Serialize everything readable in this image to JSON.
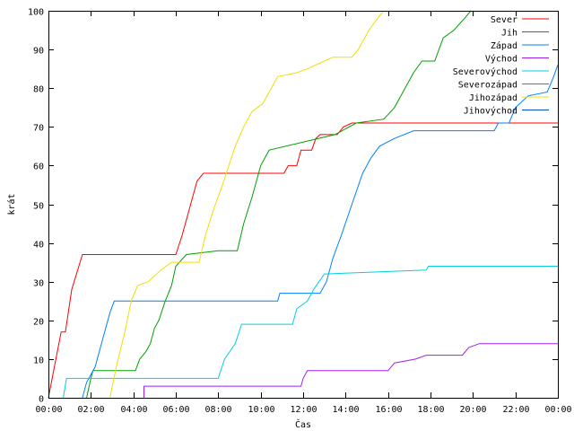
{
  "chart_data": {
    "type": "line",
    "xlabel": "Čas",
    "ylabel": "krát",
    "xlim": [
      0,
      24
    ],
    "ylim": [
      0,
      100
    ],
    "grid": false,
    "legend_position": "top-right",
    "x_ticks": [
      {
        "value": 0,
        "label": "00:00"
      },
      {
        "value": 2,
        "label": "02:00"
      },
      {
        "value": 4,
        "label": "04:00"
      },
      {
        "value": 6,
        "label": "06:00"
      },
      {
        "value": 8,
        "label": "08:00"
      },
      {
        "value": 10,
        "label": "10:00"
      },
      {
        "value": 12,
        "label": "12:00"
      },
      {
        "value": 14,
        "label": "14:00"
      },
      {
        "value": 16,
        "label": "16:00"
      },
      {
        "value": 18,
        "label": "18:00"
      },
      {
        "value": 20,
        "label": "20:00"
      },
      {
        "value": 22,
        "label": "22:00"
      },
      {
        "value": 24,
        "label": "00:00"
      }
    ],
    "y_ticks": [
      {
        "value": 0,
        "label": "0"
      },
      {
        "value": 10,
        "label": "10"
      },
      {
        "value": 20,
        "label": "20"
      },
      {
        "value": 30,
        "label": "30"
      },
      {
        "value": 40,
        "label": "40"
      },
      {
        "value": 50,
        "label": "50"
      },
      {
        "value": 60,
        "label": "60"
      },
      {
        "value": 70,
        "label": "70"
      },
      {
        "value": 80,
        "label": "80"
      },
      {
        "value": 90,
        "label": "90"
      },
      {
        "value": 100,
        "label": "100"
      }
    ],
    "series": [
      {
        "name": "Sever",
        "color": "#ff0000",
        "points": [
          [
            0.0,
            0
          ],
          [
            0.35,
            10
          ],
          [
            0.6,
            17
          ],
          [
            0.8,
            17
          ],
          [
            1.1,
            28
          ],
          [
            1.6,
            37
          ],
          [
            6.0,
            37
          ],
          [
            6.3,
            42
          ],
          [
            6.7,
            50
          ],
          [
            7.0,
            56
          ],
          [
            7.3,
            58
          ],
          [
            11.1,
            58
          ],
          [
            11.3,
            60
          ],
          [
            11.7,
            60
          ],
          [
            11.9,
            64
          ],
          [
            12.4,
            64
          ],
          [
            12.6,
            67
          ],
          [
            12.8,
            68
          ],
          [
            13.6,
            68
          ],
          [
            13.9,
            70
          ],
          [
            14.3,
            71
          ],
          [
            24.0,
            71
          ]
        ]
      },
      {
        "name": "Jih",
        "color": "#00a000",
        "points": [
          [
            1.8,
            0
          ],
          [
            2.0,
            5
          ],
          [
            2.1,
            7
          ],
          [
            4.1,
            7
          ],
          [
            4.3,
            10
          ],
          [
            4.6,
            12
          ],
          [
            4.8,
            14
          ],
          [
            5.0,
            18
          ],
          [
            5.2,
            20
          ],
          [
            5.5,
            25
          ],
          [
            5.8,
            29
          ],
          [
            6.0,
            34
          ],
          [
            6.5,
            37
          ],
          [
            8.0,
            38
          ],
          [
            8.9,
            38
          ],
          [
            9.2,
            45
          ],
          [
            9.6,
            52
          ],
          [
            10.0,
            60
          ],
          [
            10.4,
            64
          ],
          [
            13.5,
            68
          ],
          [
            14.5,
            71
          ],
          [
            15.8,
            72
          ],
          [
            16.3,
            75
          ],
          [
            16.8,
            80
          ],
          [
            17.2,
            84
          ],
          [
            17.6,
            87
          ],
          [
            18.2,
            87
          ],
          [
            18.6,
            93
          ],
          [
            19.1,
            95
          ],
          [
            19.6,
            98
          ],
          [
            19.9,
            100
          ]
        ]
      },
      {
        "name": "Západ",
        "color": "#0080ff",
        "points": [
          [
            1.6,
            0
          ],
          [
            1.8,
            4
          ],
          [
            2.2,
            8
          ],
          [
            2.6,
            16
          ],
          [
            2.9,
            22
          ],
          [
            3.1,
            25
          ],
          [
            10.8,
            25
          ],
          [
            10.9,
            27
          ],
          [
            12.8,
            27
          ],
          [
            13.1,
            30
          ],
          [
            13.4,
            36
          ],
          [
            13.8,
            42
          ],
          [
            14.3,
            50
          ],
          [
            14.8,
            58
          ],
          [
            15.2,
            62
          ],
          [
            15.6,
            65
          ],
          [
            16.3,
            67
          ],
          [
            17.2,
            69
          ],
          [
            21.0,
            69
          ],
          [
            21.2,
            71
          ],
          [
            21.7,
            71
          ],
          [
            22.0,
            75
          ],
          [
            22.6,
            78
          ],
          [
            23.5,
            79
          ],
          [
            23.8,
            83
          ],
          [
            24.0,
            86
          ]
        ]
      },
      {
        "name": "Východ",
        "color": "#a020f0",
        "points": [
          [
            4.5,
            0
          ],
          [
            4.5,
            3
          ],
          [
            11.9,
            3
          ],
          [
            12.0,
            5
          ],
          [
            12.2,
            7
          ],
          [
            16.0,
            7
          ],
          [
            16.3,
            9
          ],
          [
            17.3,
            10
          ],
          [
            17.8,
            11
          ],
          [
            19.5,
            11
          ],
          [
            19.8,
            13
          ],
          [
            20.3,
            14
          ],
          [
            24.0,
            14
          ]
        ]
      },
      {
        "name": "Severovýchod",
        "color": "#00d0e0",
        "points": [
          [
            0.7,
            0
          ],
          [
            0.85,
            5
          ],
          [
            8.0,
            5
          ],
          [
            8.3,
            10
          ],
          [
            8.8,
            14
          ],
          [
            9.1,
            19
          ],
          [
            11.5,
            19
          ],
          [
            11.7,
            23
          ],
          [
            12.2,
            25
          ],
          [
            12.5,
            28
          ],
          [
            13.0,
            32
          ],
          [
            17.8,
            33
          ],
          [
            17.9,
            34
          ],
          [
            24.0,
            34
          ]
        ]
      },
      {
        "name": "Severozápad",
        "color": "#c06000",
        "points": []
      },
      {
        "name": "Jihozápad",
        "color": "#f0e000",
        "points": [
          [
            2.9,
            0
          ],
          [
            3.2,
            8
          ],
          [
            3.6,
            17
          ],
          [
            3.9,
            25
          ],
          [
            4.2,
            29
          ],
          [
            4.7,
            30
          ],
          [
            5.3,
            33
          ],
          [
            5.8,
            35
          ],
          [
            7.1,
            35
          ],
          [
            7.4,
            42
          ],
          [
            7.8,
            49
          ],
          [
            8.2,
            55
          ],
          [
            8.5,
            60
          ],
          [
            8.8,
            65
          ],
          [
            9.2,
            70
          ],
          [
            9.6,
            74
          ],
          [
            10.1,
            76
          ],
          [
            10.5,
            80
          ],
          [
            10.8,
            83
          ],
          [
            11.7,
            84
          ],
          [
            12.2,
            85
          ],
          [
            13.0,
            87
          ],
          [
            13.4,
            88
          ],
          [
            14.3,
            88
          ],
          [
            14.6,
            90
          ],
          [
            15.1,
            95
          ],
          [
            15.5,
            98
          ],
          [
            15.8,
            100
          ]
        ]
      },
      {
        "name": "Jihovýchod",
        "color": "#0050c0",
        "points": []
      }
    ]
  }
}
